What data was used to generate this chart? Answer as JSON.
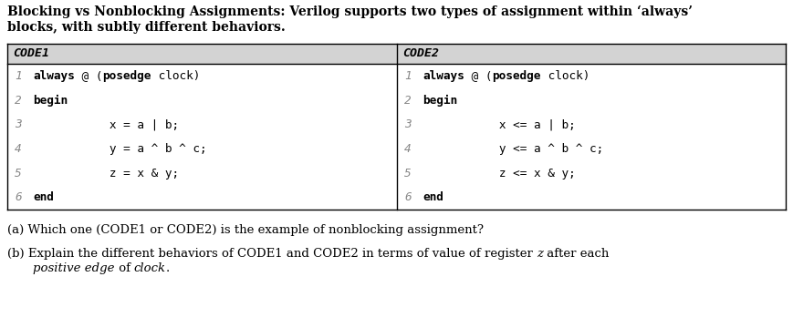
{
  "title_line1": "Blocking vs Nonblocking Assignments: Verilog supports two types of assignment within ‘always’",
  "title_line2": "blocks, with subtly different behaviors.",
  "header1": "CODE1",
  "header2": "CODE2",
  "code1_lines": [
    {
      "num": "1",
      "parts": [
        {
          "t": "always",
          "b": true
        },
        {
          "t": " @ (",
          "b": false
        },
        {
          "t": "posedge",
          "b": true
        },
        {
          "t": " clock)",
          "b": false
        }
      ]
    },
    {
      "num": "2",
      "parts": [
        {
          "t": "begin",
          "b": true
        }
      ]
    },
    {
      "num": "3",
      "parts": [
        {
          "t": "           x = a | b;",
          "b": false
        }
      ]
    },
    {
      "num": "4",
      "parts": [
        {
          "t": "           y = a ^ b ^ c;",
          "b": false
        }
      ]
    },
    {
      "num": "5",
      "parts": [
        {
          "t": "           z = x & y;",
          "b": false
        }
      ]
    },
    {
      "num": "6",
      "parts": [
        {
          "t": "end",
          "b": true
        }
      ]
    }
  ],
  "code2_lines": [
    {
      "num": "1",
      "parts": [
        {
          "t": "always",
          "b": true
        },
        {
          "t": " @ (",
          "b": false
        },
        {
          "t": "posedge",
          "b": true
        },
        {
          "t": " clock)",
          "b": false
        }
      ]
    },
    {
      "num": "2",
      "parts": [
        {
          "t": "begin",
          "b": true
        }
      ]
    },
    {
      "num": "3",
      "parts": [
        {
          "t": "           x <= a | b;",
          "b": false
        }
      ]
    },
    {
      "num": "4",
      "parts": [
        {
          "t": "           y <= a ^ b ^ c;",
          "b": false
        }
      ]
    },
    {
      "num": "5",
      "parts": [
        {
          "t": "           z <= x & y;",
          "b": false
        }
      ]
    },
    {
      "num": "6",
      "parts": [
        {
          "t": "end",
          "b": true
        }
      ]
    }
  ],
  "header_bg": "#d3d3d3",
  "border_color": "#000000",
  "num_color": "#888888",
  "fig_bg": "#ffffff",
  "font_size_title": 10.0,
  "font_size_code": 9.2,
  "font_size_header": 9.5,
  "font_size_question": 9.5
}
